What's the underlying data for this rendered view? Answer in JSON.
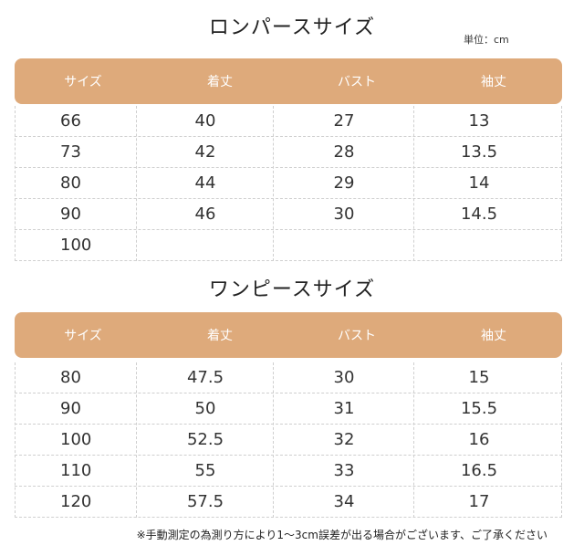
{
  "romper": {
    "title": "ロンパースサイズ",
    "unit": "単位：cm",
    "headers": [
      "サイズ",
      "着丈",
      "バスト",
      "袖丈"
    ],
    "rows": [
      [
        "66",
        "40",
        "27",
        "13"
      ],
      [
        "73",
        "42",
        "28",
        "13.5"
      ],
      [
        "80",
        "44",
        "29",
        "14"
      ],
      [
        "90",
        "46",
        "30",
        "14.5"
      ],
      [
        "100",
        "",
        "",
        ""
      ]
    ]
  },
  "onepiece": {
    "title": "ワンピースサイズ",
    "headers": [
      "サイズ",
      "着丈",
      "バスト",
      "袖丈"
    ],
    "rows": [
      [
        "80",
        "47.5",
        "30",
        "15"
      ],
      [
        "90",
        "50",
        "31",
        "15.5"
      ],
      [
        "100",
        "52.5",
        "32",
        "16"
      ],
      [
        "110",
        "55",
        "33",
        "16.5"
      ],
      [
        "120",
        "57.5",
        "34",
        "17"
      ]
    ]
  },
  "note": "※手動測定の為測り方により1〜3cm誤差が出る場合がございます、ご了承ください",
  "colors": {
    "header_bg": "#deaa7b",
    "header_text": "#ffffff"
  }
}
